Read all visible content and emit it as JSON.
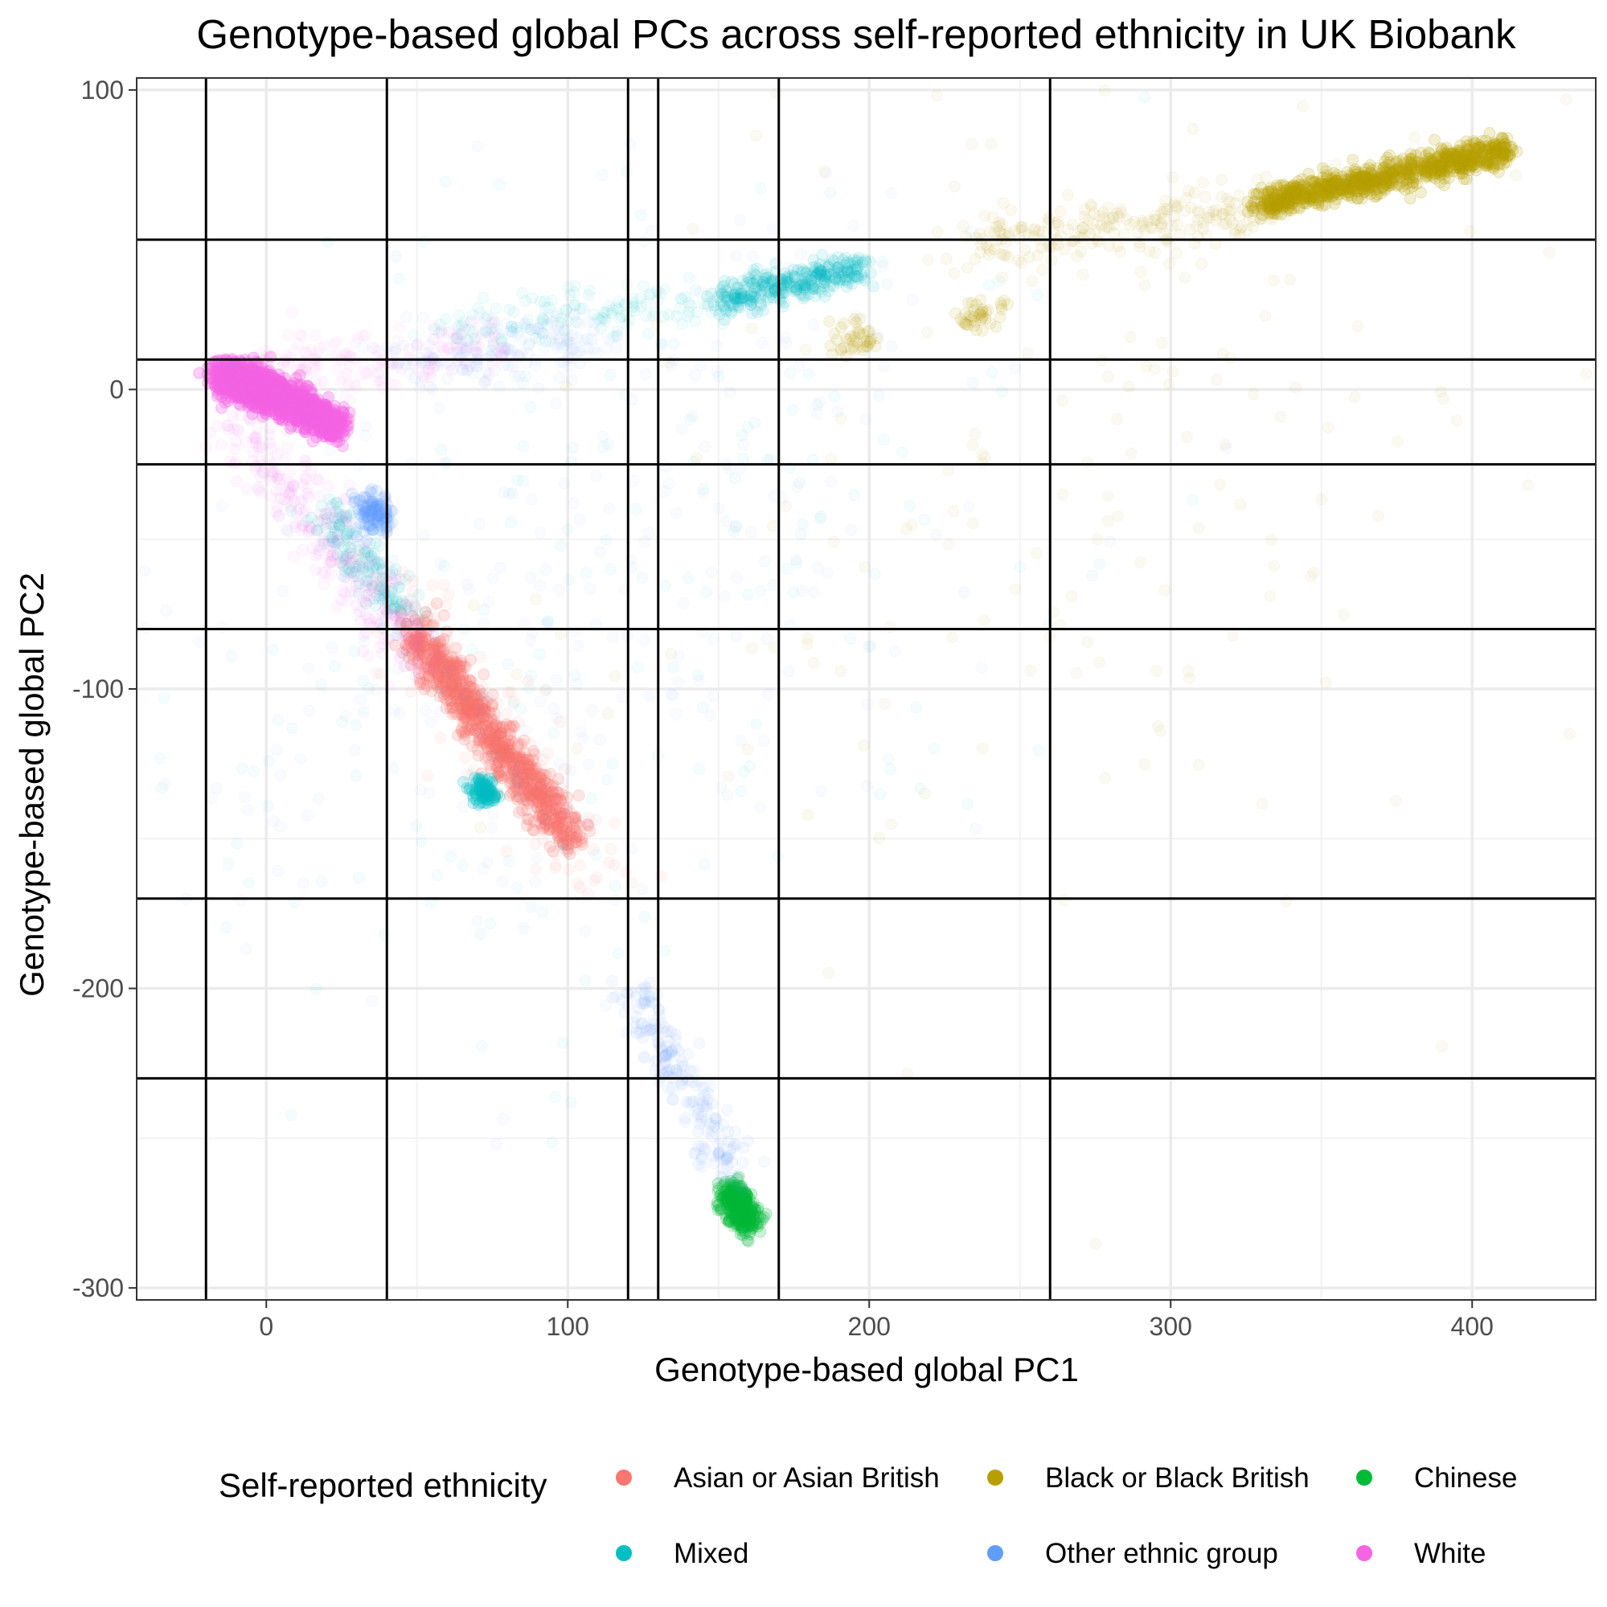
{
  "chart_data": {
    "type": "scatter",
    "title": "Genotype-based global PCs across self-reported ethnicity in UK Biobank",
    "xlabel": "Genotype-based global PC1",
    "ylabel": "Genotype-based global PC2",
    "xlim": [
      -43,
      441
    ],
    "ylim": [
      -304,
      104
    ],
    "x_ticks": [
      0,
      100,
      200,
      300,
      400
    ],
    "y_ticks": [
      100,
      0,
      -100,
      -200,
      -300
    ],
    "x_tick_labels": [
      "0",
      "100",
      "200",
      "300",
      "400"
    ],
    "y_tick_labels": [
      "100",
      "0",
      "-100",
      "-200",
      "-300"
    ],
    "grid": true,
    "vlines": [
      -20,
      40,
      120,
      130,
      170,
      260
    ],
    "hlines": [
      50,
      10,
      -25,
      -80,
      -170,
      -230
    ],
    "legend": {
      "title": "Self-reported ethnicity",
      "position": "bottom"
    },
    "series": [
      {
        "name": "Asian or Asian British",
        "color": "#F8766D",
        "clusters": [
          {
            "from": [
              50,
              -82
            ],
            "to": [
              102,
              -152
            ],
            "spread": 3.5,
            "count": 900,
            "alpha": 0.18
          },
          {
            "from": [
              40,
              -60
            ],
            "to": [
              110,
              -165
            ],
            "spread": 9,
            "count": 120,
            "alpha": 0.06
          }
        ]
      },
      {
        "name": "Black or Black British",
        "color": "#B79F00",
        "clusters": [
          {
            "from": [
              330,
              62
            ],
            "to": [
              412,
              80
            ],
            "spread": 2.5,
            "count": 900,
            "alpha": 0.18
          },
          {
            "from": [
              230,
              48
            ],
            "to": [
              330,
              60
            ],
            "spread": 5,
            "count": 220,
            "alpha": 0.06
          },
          {
            "from": [
              190,
              15
            ],
            "to": [
              200,
              20
            ],
            "spread": 3,
            "count": 40,
            "alpha": 0.1
          },
          {
            "from": [
              230,
              22
            ],
            "to": [
              245,
              28
            ],
            "spread": 3,
            "count": 40,
            "alpha": 0.1
          },
          {
            "from": [
              170,
              -100
            ],
            "to": [
              380,
              40
            ],
            "spread": 70,
            "count": 180,
            "alpha": 0.05
          }
        ]
      },
      {
        "name": "Chinese",
        "color": "#00BA38",
        "clusters": [
          {
            "from": [
              154,
              -268
            ],
            "to": [
              160,
              -278
            ],
            "spread": 2.5,
            "count": 320,
            "alpha": 0.2
          }
        ]
      },
      {
        "name": "Mixed",
        "color": "#00BFC4",
        "clusters": [
          {
            "from": [
              150,
              30
            ],
            "to": [
              200,
              41
            ],
            "spread": 3,
            "count": 320,
            "alpha": 0.1
          },
          {
            "from": [
              60,
              20
            ],
            "to": [
              150,
              30
            ],
            "spread": 4,
            "count": 140,
            "alpha": 0.05
          },
          {
            "from": [
              20,
              -40
            ],
            "to": [
              45,
              -75
            ],
            "spread": 4,
            "count": 160,
            "alpha": 0.07
          },
          {
            "from": [
              70,
              -132
            ],
            "to": [
              74,
              -136
            ],
            "spread": 2,
            "count": 90,
            "alpha": 0.2
          },
          {
            "from": [
              20,
              -160
            ],
            "to": [
              200,
              20
            ],
            "spread": 55,
            "count": 220,
            "alpha": 0.04
          }
        ]
      },
      {
        "name": "Other ethnic group",
        "color": "#619CFF",
        "clusters": [
          {
            "from": [
              34,
              -38
            ],
            "to": [
              38,
              -45
            ],
            "spread": 3,
            "count": 120,
            "alpha": 0.12
          },
          {
            "from": [
              40,
              10
            ],
            "to": [
              110,
              15
            ],
            "spread": 6,
            "count": 160,
            "alpha": 0.04
          },
          {
            "from": [
              120,
              -200
            ],
            "to": [
              155,
              -262
            ],
            "spread": 4,
            "count": 200,
            "alpha": 0.06
          },
          {
            "from": [
              30,
              -150
            ],
            "to": [
              180,
              10
            ],
            "spread": 50,
            "count": 260,
            "alpha": 0.04
          }
        ]
      },
      {
        "name": "White",
        "color": "#F564E3",
        "clusters": [
          {
            "from": [
              -15,
              5
            ],
            "to": [
              5,
              -3
            ],
            "spread": 3,
            "count": 900,
            "alpha": 0.3
          },
          {
            "from": [
              5,
              -3
            ],
            "to": [
              24,
              -12
            ],
            "spread": 3,
            "count": 500,
            "alpha": 0.3
          },
          {
            "from": [
              -10,
              -10
            ],
            "to": [
              50,
              -90
            ],
            "spread": 6,
            "count": 300,
            "alpha": 0.05
          },
          {
            "from": [
              -10,
              5
            ],
            "to": [
              80,
              15
            ],
            "spread": 5,
            "count": 200,
            "alpha": 0.04
          }
        ]
      }
    ]
  }
}
